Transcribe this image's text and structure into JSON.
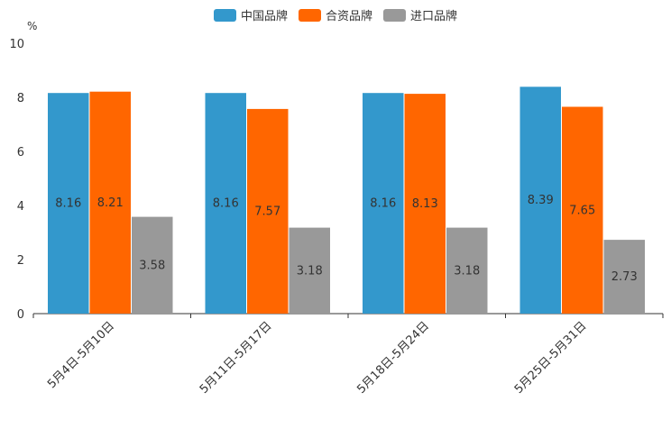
{
  "chart_data": {
    "type": "bar",
    "unit": "%",
    "categories": [
      "5月4日-5月10日",
      "5月11日-5月17日",
      "5月18日-5月24日",
      "5月25日-5月31日"
    ],
    "series": [
      {
        "name": "中国品牌",
        "color": "#3398cc",
        "values": [
          8.16,
          8.16,
          8.16,
          8.39
        ]
      },
      {
        "name": "合资品牌",
        "color": "#ff6600",
        "values": [
          8.21,
          7.57,
          8.13,
          7.65
        ]
      },
      {
        "name": "进口品牌",
        "color": "#999999",
        "values": [
          3.58,
          3.18,
          3.18,
          2.73
        ]
      }
    ],
    "ylim": [
      0,
      10
    ],
    "yticks": [
      "0",
      "2",
      "4",
      "6",
      "8",
      "10"
    ],
    "legend_position": "top-center"
  }
}
